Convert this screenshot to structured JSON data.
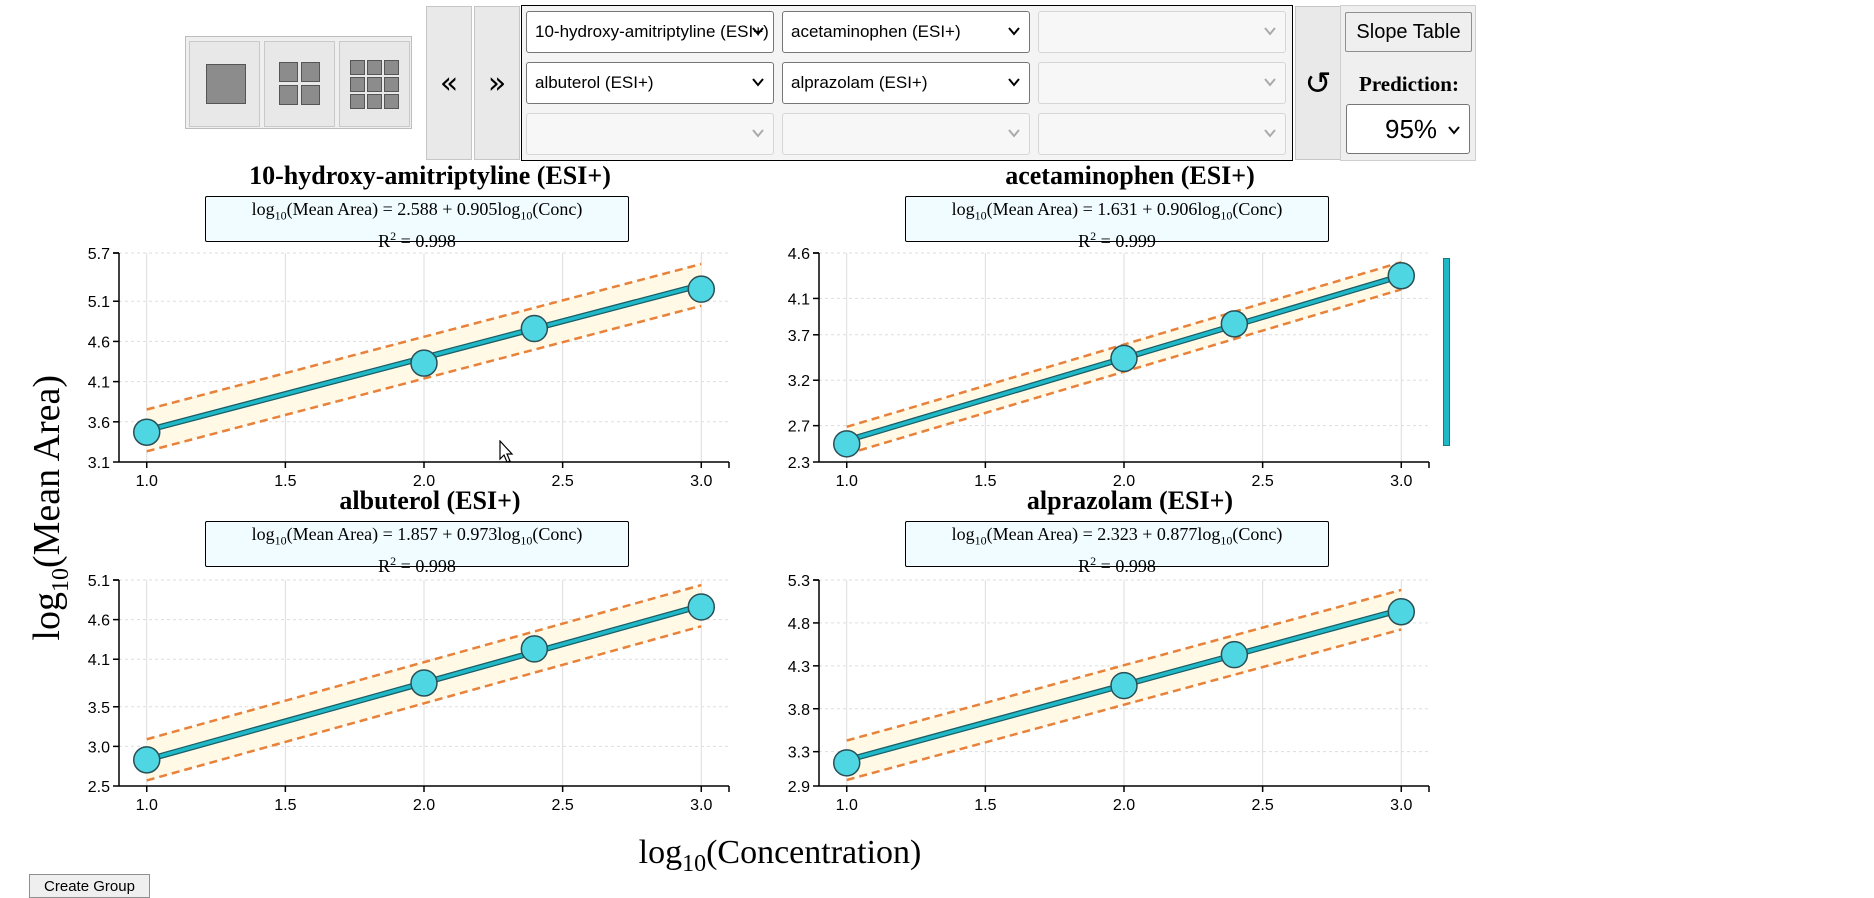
{
  "toolbar": {
    "layout_buttons": [
      "single-layout",
      "grid-2x2-layout",
      "grid-3x3-layout"
    ],
    "prev_label": "«",
    "next_label": "»",
    "reset_icon": "↺",
    "slope_table_label": "Slope Table",
    "prediction_label": "Prediction:",
    "prediction_value": "95%",
    "selects": [
      "10-hydroxy-amitriptyline (ESI+)",
      "acetaminophen (ESI+)",
      "",
      "albuterol (ESI+)",
      "alprazolam (ESI+)",
      "",
      "",
      "",
      ""
    ]
  },
  "axis_labels": {
    "y_main": "log",
    "y_sub": "10",
    "y_rest": "(Mean Area)",
    "x_main": "log",
    "x_sub": "10",
    "x_rest": "(Concentration)"
  },
  "plots": [
    {
      "title": "10-hydroxy-amitriptyline (ESI+)",
      "intercept": "2.588",
      "slope": "0.905",
      "r2": "0.998"
    },
    {
      "title": "acetaminophen (ESI+)",
      "intercept": "1.631",
      "slope": "0.906",
      "r2": "0.999"
    },
    {
      "title": "albuterol (ESI+)",
      "intercept": "1.857",
      "slope": "0.973",
      "r2": "0.998"
    },
    {
      "title": "alprazolam (ESI+)",
      "intercept": "2.323",
      "slope": "0.877",
      "r2": "0.998"
    }
  ],
  "create_group_label": "Create Group",
  "colors": {
    "fit_line": "#1fb8c7",
    "point_fill": "#4fd6e3",
    "band": "#e8823a",
    "band_fill": "#fff9e6",
    "grid": "#dddddd"
  },
  "chart_data": [
    {
      "type": "scatter",
      "title": "10-hydroxy-amitriptyline (ESI+)",
      "x": [
        1.0,
        2.0,
        2.398,
        3.0
      ],
      "y": [
        3.47,
        4.33,
        4.76,
        5.25
      ],
      "fit": {
        "intercept": 2.588,
        "slope": 0.905
      },
      "band_halfwidth": 0.26,
      "xlim": [
        0.9,
        3.1
      ],
      "ylim": [
        3.1,
        5.7
      ],
      "xticks": [
        "1.0",
        "1.5",
        "2.0",
        "2.5",
        "3.0"
      ],
      "yticks": [
        "3.1",
        "3.6",
        "4.1",
        "4.6",
        "5.1",
        "5.7"
      ],
      "ytick_values": [
        3.1,
        3.6,
        4.1,
        4.6,
        5.1,
        5.7
      ]
    },
    {
      "type": "scatter",
      "title": "acetaminophen (ESI+)",
      "x": [
        1.0,
        2.0,
        2.398,
        3.0
      ],
      "y": [
        2.5,
        3.44,
        3.82,
        4.35
      ],
      "fit": {
        "intercept": 1.631,
        "slope": 0.906
      },
      "band_halfwidth": 0.15,
      "xlim": [
        0.9,
        3.1
      ],
      "ylim": [
        2.3,
        4.6
      ],
      "xticks": [
        "1.0",
        "1.5",
        "2.0",
        "2.5",
        "3.0"
      ],
      "yticks": [
        "2.3",
        "2.7",
        "3.2",
        "3.7",
        "4.1",
        "4.6"
      ],
      "ytick_values": [
        2.3,
        2.7,
        3.2,
        3.7,
        4.1,
        4.6
      ]
    },
    {
      "type": "scatter",
      "title": "albuterol (ESI+)",
      "x": [
        1.0,
        2.0,
        2.398,
        3.0
      ],
      "y": [
        2.83,
        3.8,
        4.23,
        4.76
      ],
      "fit": {
        "intercept": 1.857,
        "slope": 0.973
      },
      "band_halfwidth": 0.26,
      "xlim": [
        0.9,
        3.1
      ],
      "ylim": [
        2.5,
        5.1
      ],
      "xticks": [
        "1.0",
        "1.5",
        "2.0",
        "2.5",
        "3.0"
      ],
      "yticks": [
        "2.5",
        "3.0",
        "3.5",
        "4.1",
        "4.6",
        "5.1"
      ],
      "ytick_values": [
        2.5,
        3.0,
        3.5,
        4.1,
        4.6,
        5.1
      ]
    },
    {
      "type": "scatter",
      "title": "alprazolam (ESI+)",
      "x": [
        1.0,
        2.0,
        2.398,
        3.0
      ],
      "y": [
        3.17,
        4.07,
        4.43,
        4.93
      ],
      "fit": {
        "intercept": 2.323,
        "slope": 0.877
      },
      "band_halfwidth": 0.23,
      "xlim": [
        0.9,
        3.1
      ],
      "ylim": [
        2.9,
        5.3
      ],
      "xticks": [
        "1.0",
        "1.5",
        "2.0",
        "2.5",
        "3.0"
      ],
      "yticks": [
        "2.9",
        "3.3",
        "3.8",
        "4.3",
        "4.8",
        "5.3"
      ],
      "ytick_values": [
        2.9,
        3.3,
        3.8,
        4.3,
        4.8,
        5.3
      ]
    }
  ]
}
